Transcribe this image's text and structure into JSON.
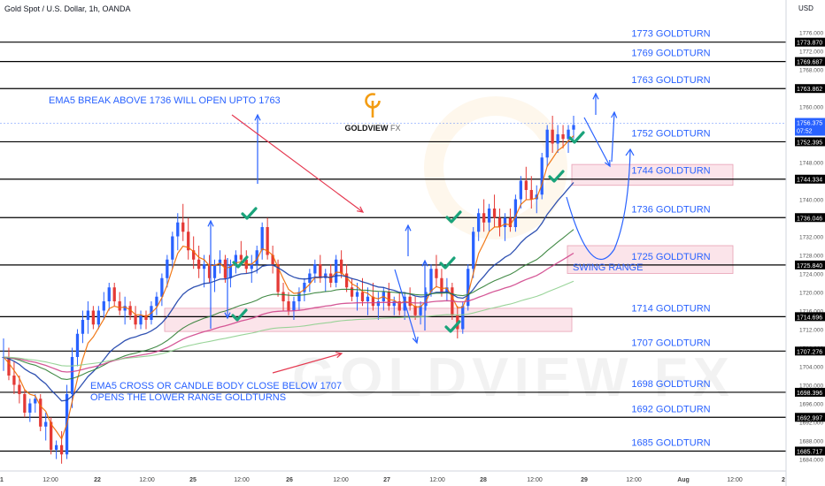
{
  "header": {
    "title": "Gold Spot / U.S. Dollar, 1h, OANDA",
    "currency": "USD"
  },
  "brand": {
    "name": "GOLDVIEW",
    "suffix": "FX",
    "watermark": "GOLDVIEW FX",
    "color": "#f39c12"
  },
  "colors": {
    "up": "#2962ff",
    "down": "#e53935",
    "bar_label_bg": "#000000",
    "last_price_bg": "#2962ff",
    "zone_fill": "#fadbe3",
    "zone_stroke": "#e8a0b4",
    "annotation_blue": "#2962ff",
    "annotation_red": "#e53950",
    "check_green": "#1aa37a",
    "ema_fast": "#ef6c00",
    "ema_slow": "#1a3faa",
    "ema_mid": "#2e7d32",
    "ema_pink": "#d0468c",
    "ema_light": "#8ecf8e"
  },
  "chart_data": {
    "type": "candlestick",
    "title": "Gold Spot / U.S. Dollar, 1h, OANDA",
    "ylim": [
      1682,
      1778
    ],
    "x_tick_labels": [
      "1",
      "12:00",
      "22",
      "12:00",
      "25",
      "12:00",
      "26",
      "12:00",
      "27",
      "12:00",
      "28",
      "12:00",
      "29",
      "12:00",
      "Aug",
      "12:00",
      "2"
    ],
    "y_tick_labels": [
      "1684.000",
      "1688.000",
      "1692.000",
      "1696.000",
      "1700.000",
      "1704.000",
      "1708.000",
      "1712.000",
      "1716.000",
      "1720.000",
      "1724.000",
      "1728.000",
      "1732.000",
      "1736.000",
      "1740.000",
      "1744.000",
      "1748.000",
      "1752.000",
      "1756.000",
      "1760.000",
      "1764.000",
      "1768.000",
      "1772.000",
      "1776.000"
    ],
    "levels": [
      {
        "price": 1773.87,
        "label": "1773 GOLDTURN",
        "tag": "1773.870"
      },
      {
        "price": 1769.687,
        "label": "1769 GOLDTURN",
        "tag": "1769.687"
      },
      {
        "price": 1763.862,
        "label": "1763 GOLDTURN",
        "tag": "1763.862"
      },
      {
        "price": 1752.395,
        "label": "1752 GOLDTURN",
        "tag": "1752.395"
      },
      {
        "price": 1744.334,
        "label": "1744 GOLDTURN",
        "tag": "1744.334"
      },
      {
        "price": 1736.046,
        "label": "1736 GOLDTURN",
        "tag": "1736.046"
      },
      {
        "price": 1725.84,
        "label": "1725 GOLDTURN",
        "tag": "1725.840"
      },
      {
        "price": 1714.696,
        "label": "1714 GOLDTURN",
        "tag": "1714.696"
      },
      {
        "price": 1707.276,
        "label": "1707 GOLDTURN",
        "tag": "1707.276"
      },
      {
        "price": 1698.396,
        "label": "1698 GOLDTURN",
        "tag": "1698.396"
      },
      {
        "price": 1692.997,
        "label": "1692 GOLDTURN",
        "tag": "1692.997"
      },
      {
        "price": 1685.717,
        "label": "1685 GOLDTURN",
        "tag": "1685.717"
      }
    ],
    "last_price": {
      "price": 1756.375,
      "tag": "1756.375",
      "countdown": "07:52"
    },
    "annotations": [
      "EMA5 BREAK ABOVE 1736 WILL OPEN UPTO 1763",
      "EMA5 CROSS OR CANDLE BODY CLOSE BELOW 1707",
      "OPENS THE  LOWER RANGE GOLDTURNS",
      "SWING RANGE"
    ],
    "zones": [
      {
        "from": 1711.5,
        "to": 1716.5,
        "name": "support zone"
      },
      {
        "from": 1724.0,
        "to": 1730.0,
        "name": "swing range"
      },
      {
        "from": 1743.0,
        "to": 1747.5,
        "name": "1744 zone"
      }
    ],
    "candles": [
      [
        1706,
        1710,
        1703,
        1706
      ],
      [
        1706,
        1708,
        1701,
        1702
      ],
      [
        1702,
        1705,
        1698,
        1700
      ],
      [
        1700,
        1702,
        1696,
        1698
      ],
      [
        1698,
        1699,
        1693,
        1694
      ],
      [
        1694,
        1697,
        1692,
        1696
      ],
      [
        1696,
        1698,
        1694,
        1697
      ],
      [
        1697,
        1698,
        1690,
        1691
      ],
      [
        1691,
        1694,
        1688,
        1692
      ],
      [
        1692,
        1693,
        1685,
        1686
      ],
      [
        1686,
        1688,
        1684,
        1687
      ],
      [
        1687,
        1690,
        1683,
        1685
      ],
      [
        1685,
        1700,
        1684,
        1698
      ],
      [
        1698,
        1708,
        1695,
        1706
      ],
      [
        1706,
        1712,
        1704,
        1711
      ],
      [
        1711,
        1716,
        1709,
        1714
      ],
      [
        1714,
        1718,
        1711,
        1716
      ],
      [
        1716,
        1717,
        1712,
        1713
      ],
      [
        1713,
        1717,
        1712,
        1716
      ],
      [
        1716,
        1720,
        1714,
        1718
      ],
      [
        1718,
        1722,
        1716,
        1721
      ],
      [
        1721,
        1722,
        1717,
        1718
      ],
      [
        1718,
        1720,
        1715,
        1716
      ],
      [
        1716,
        1719,
        1713,
        1717
      ],
      [
        1717,
        1718,
        1714,
        1715
      ],
      [
        1715,
        1717,
        1712,
        1713
      ],
      [
        1713,
        1716,
        1712,
        1715
      ],
      [
        1715,
        1716,
        1712,
        1714
      ],
      [
        1714,
        1718,
        1713,
        1717
      ],
      [
        1717,
        1720,
        1715,
        1719
      ],
      [
        1719,
        1724,
        1717,
        1723
      ],
      [
        1723,
        1728,
        1721,
        1727
      ],
      [
        1727,
        1733,
        1725,
        1732
      ],
      [
        1732,
        1737,
        1729,
        1735
      ],
      [
        1735,
        1739,
        1731,
        1733
      ],
      [
        1733,
        1736,
        1727,
        1729
      ],
      [
        1729,
        1732,
        1725,
        1727
      ],
      [
        1727,
        1730,
        1723,
        1725
      ],
      [
        1725,
        1728,
        1721,
        1726
      ],
      [
        1726,
        1728,
        1722,
        1723
      ],
      [
        1723,
        1727,
        1720,
        1726
      ],
      [
        1726,
        1729,
        1724,
        1727
      ],
      [
        1727,
        1728,
        1722,
        1723
      ],
      [
        1723,
        1727,
        1721,
        1726
      ],
      [
        1726,
        1729,
        1724,
        1728
      ],
      [
        1728,
        1731,
        1726,
        1727
      ],
      [
        1727,
        1729,
        1724,
        1725
      ],
      [
        1725,
        1728,
        1722,
        1726
      ],
      [
        1726,
        1730,
        1724,
        1729
      ],
      [
        1729,
        1735,
        1727,
        1734
      ],
      [
        1734,
        1736,
        1727,
        1728
      ],
      [
        1728,
        1730,
        1724,
        1726
      ],
      [
        1726,
        1727,
        1719,
        1720
      ],
      [
        1720,
        1722,
        1716,
        1718
      ],
      [
        1718,
        1720,
        1715,
        1716
      ],
      [
        1716,
        1719,
        1714,
        1718
      ],
      [
        1718,
        1721,
        1716,
        1720
      ],
      [
        1720,
        1723,
        1718,
        1722
      ],
      [
        1722,
        1725,
        1720,
        1724
      ],
      [
        1724,
        1727,
        1722,
        1726
      ],
      [
        1726,
        1728,
        1722,
        1723
      ],
      [
        1723,
        1725,
        1720,
        1724
      ],
      [
        1724,
        1726,
        1721,
        1722
      ],
      [
        1722,
        1728,
        1721,
        1727
      ],
      [
        1727,
        1729,
        1723,
        1724
      ],
      [
        1724,
        1726,
        1720,
        1721
      ],
      [
        1721,
        1723,
        1718,
        1719
      ],
      [
        1719,
        1722,
        1716,
        1720
      ],
      [
        1720,
        1723,
        1717,
        1718
      ],
      [
        1718,
        1721,
        1715,
        1719
      ],
      [
        1719,
        1722,
        1716,
        1717
      ],
      [
        1717,
        1720,
        1714,
        1718
      ],
      [
        1718,
        1721,
        1716,
        1720
      ],
      [
        1720,
        1722,
        1716,
        1717
      ],
      [
        1717,
        1719,
        1715,
        1718
      ],
      [
        1718,
        1720,
        1715,
        1716
      ],
      [
        1716,
        1720,
        1714,
        1719
      ],
      [
        1719,
        1721,
        1716,
        1717
      ],
      [
        1717,
        1719,
        1714,
        1715
      ],
      [
        1715,
        1718,
        1713,
        1717
      ],
      [
        1717,
        1721,
        1716,
        1720
      ],
      [
        1720,
        1726,
        1719,
        1725
      ],
      [
        1725,
        1728,
        1721,
        1723
      ],
      [
        1723,
        1725,
        1719,
        1720
      ],
      [
        1720,
        1723,
        1718,
        1721
      ],
      [
        1721,
        1722,
        1714,
        1715
      ],
      [
        1715,
        1717,
        1710,
        1712
      ],
      [
        1712,
        1718,
        1711,
        1717
      ],
      [
        1717,
        1726,
        1716,
        1725
      ],
      [
        1725,
        1734,
        1723,
        1733
      ],
      [
        1733,
        1738,
        1731,
        1737
      ],
      [
        1737,
        1740,
        1733,
        1735
      ],
      [
        1735,
        1739,
        1733,
        1738
      ],
      [
        1738,
        1741,
        1734,
        1736
      ],
      [
        1736,
        1738,
        1732,
        1734
      ],
      [
        1734,
        1737,
        1731,
        1736
      ],
      [
        1736,
        1738,
        1733,
        1734
      ],
      [
        1734,
        1741,
        1733,
        1740
      ],
      [
        1740,
        1745,
        1738,
        1744
      ],
      [
        1744,
        1747,
        1740,
        1742
      ],
      [
        1742,
        1745,
        1738,
        1740
      ],
      [
        1740,
        1743,
        1737,
        1741
      ],
      [
        1741,
        1750,
        1740,
        1749
      ],
      [
        1749,
        1756,
        1747,
        1755
      ],
      [
        1755,
        1758,
        1750,
        1752
      ],
      [
        1752,
        1756,
        1750,
        1754
      ],
      [
        1754,
        1756,
        1751,
        1753
      ],
      [
        1753,
        1756,
        1750,
        1755
      ],
      [
        1755,
        1758,
        1753,
        1756
      ]
    ]
  }
}
